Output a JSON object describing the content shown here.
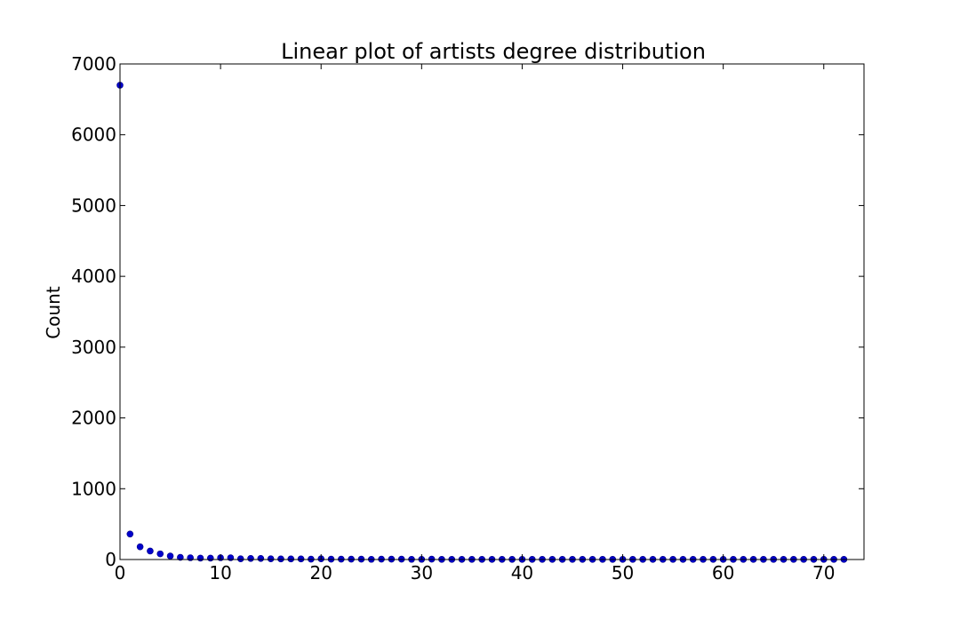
{
  "chart_data": {
    "type": "scatter",
    "title": "Linear plot of artists degree distribution",
    "xlabel": "",
    "ylabel": "Count",
    "xlim": [
      0,
      74
    ],
    "ylim": [
      0,
      7000
    ],
    "xticks": [
      0,
      10,
      20,
      30,
      40,
      50,
      60,
      70
    ],
    "yticks": [
      0,
      1000,
      2000,
      3000,
      4000,
      5000,
      6000,
      7000
    ],
    "grid": false,
    "marker_color": "#0000cc",
    "series": [
      {
        "x": [
          0,
          1,
          2,
          3,
          4,
          5,
          6,
          7,
          8,
          9,
          10,
          11,
          12,
          13,
          14,
          15,
          16,
          17,
          18,
          19,
          20,
          21,
          22,
          23,
          24,
          25,
          26,
          27,
          28,
          29,
          30,
          31,
          32,
          33,
          34,
          35,
          36,
          37,
          38,
          39,
          40,
          41,
          42,
          43,
          44,
          45,
          46,
          47,
          48,
          49,
          50,
          51,
          52,
          53,
          54,
          55,
          56,
          57,
          58,
          59,
          60,
          61,
          62,
          63,
          64,
          65,
          66,
          67,
          68,
          69,
          70,
          71,
          72
        ],
        "y": [
          6700,
          360,
          180,
          120,
          80,
          50,
          30,
          25,
          20,
          20,
          25,
          25,
          10,
          15,
          15,
          10,
          8,
          8,
          8,
          5,
          10,
          5,
          5,
          5,
          5,
          3,
          5,
          5,
          5,
          3,
          3,
          5,
          2,
          2,
          2,
          2,
          2,
          2,
          2,
          2,
          2,
          2,
          2,
          2,
          2,
          2,
          2,
          2,
          2,
          2,
          2,
          2,
          2,
          2,
          2,
          2,
          2,
          2,
          2,
          2,
          2,
          2,
          2,
          2,
          2,
          2,
          2,
          2,
          2,
          2,
          2,
          2,
          2
        ]
      }
    ]
  }
}
